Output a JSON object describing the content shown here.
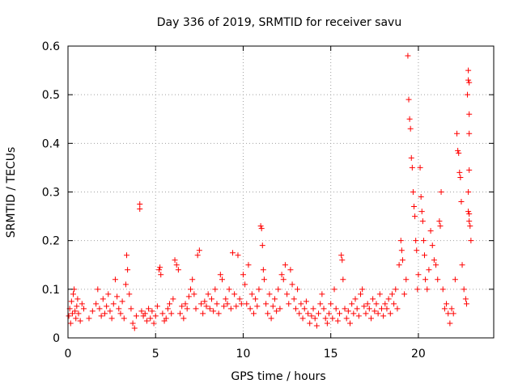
{
  "chart_data": {
    "type": "scatter",
    "title": "Day 336 of 2019, SRMTID for receiver savu",
    "xlabel": "GPS time / hours",
    "ylabel": "SRMTID / TECUs",
    "xlim": [
      0,
      24.3
    ],
    "ylim": [
      0,
      0.6
    ],
    "xticks": [
      0,
      5,
      10,
      15,
      20
    ],
    "yticks": [
      0,
      0.1,
      0.2,
      0.3,
      0.4,
      0.5,
      0.6
    ],
    "xtick_labels": [
      "0",
      "5",
      "10",
      "15",
      "20"
    ],
    "ytick_labels": [
      "0",
      "0.1",
      "0.2",
      "0.3",
      "0.4",
      "0.5",
      "0.6"
    ],
    "grid": true,
    "marker": "+",
    "color": "#ff0000",
    "series": [
      {
        "name": "SRMTID",
        "points": [
          [
            0.05,
            0.045
          ],
          [
            0.1,
            0.06
          ],
          [
            0.15,
            0.03
          ],
          [
            0.2,
            0.075
          ],
          [
            0.25,
            0.05
          ],
          [
            0.3,
            0.09
          ],
          [
            0.35,
            0.1
          ],
          [
            0.4,
            0.055
          ],
          [
            0.45,
            0.04
          ],
          [
            0.5,
            0.065
          ],
          [
            0.55,
            0.08
          ],
          [
            0.6,
            0.05
          ],
          [
            0.7,
            0.035
          ],
          [
            0.8,
            0.07
          ],
          [
            0.9,
            0.06
          ],
          [
            1.2,
            0.04
          ],
          [
            1.4,
            0.055
          ],
          [
            1.6,
            0.07
          ],
          [
            1.7,
            0.1
          ],
          [
            1.8,
            0.06
          ],
          [
            1.9,
            0.045
          ],
          [
            2.0,
            0.08
          ],
          [
            2.1,
            0.05
          ],
          [
            2.2,
            0.065
          ],
          [
            2.3,
            0.09
          ],
          [
            2.4,
            0.055
          ],
          [
            2.5,
            0.04
          ],
          [
            2.6,
            0.07
          ],
          [
            2.7,
            0.12
          ],
          [
            2.8,
            0.085
          ],
          [
            2.9,
            0.06
          ],
          [
            3.0,
            0.05
          ],
          [
            3.1,
            0.075
          ],
          [
            3.2,
            0.04
          ],
          [
            3.3,
            0.11
          ],
          [
            3.35,
            0.17
          ],
          [
            3.4,
            0.14
          ],
          [
            3.5,
            0.09
          ],
          [
            3.6,
            0.06
          ],
          [
            3.7,
            0.03
          ],
          [
            3.8,
            0.02
          ],
          [
            3.9,
            0.045
          ],
          [
            4.1,
            0.275
          ],
          [
            4.1,
            0.265
          ],
          [
            4.2,
            0.055
          ],
          [
            4.3,
            0.045
          ],
          [
            4.4,
            0.05
          ],
          [
            4.5,
            0.035
          ],
          [
            4.6,
            0.06
          ],
          [
            4.7,
            0.04
          ],
          [
            4.8,
            0.055
          ],
          [
            4.9,
            0.03
          ],
          [
            5.0,
            0.045
          ],
          [
            5.1,
            0.065
          ],
          [
            5.2,
            0.14
          ],
          [
            5.25,
            0.145
          ],
          [
            5.3,
            0.13
          ],
          [
            5.4,
            0.05
          ],
          [
            5.5,
            0.035
          ],
          [
            5.6,
            0.04
          ],
          [
            5.7,
            0.06
          ],
          [
            5.8,
            0.07
          ],
          [
            5.9,
            0.05
          ],
          [
            6.0,
            0.08
          ],
          [
            6.1,
            0.16
          ],
          [
            6.2,
            0.15
          ],
          [
            6.3,
            0.14
          ],
          [
            6.4,
            0.05
          ],
          [
            6.5,
            0.065
          ],
          [
            6.6,
            0.04
          ],
          [
            6.7,
            0.07
          ],
          [
            6.8,
            0.06
          ],
          [
            6.9,
            0.085
          ],
          [
            7.0,
            0.1
          ],
          [
            7.1,
            0.12
          ],
          [
            7.2,
            0.09
          ],
          [
            7.3,
            0.06
          ],
          [
            7.4,
            0.17
          ],
          [
            7.5,
            0.18
          ],
          [
            7.6,
            0.07
          ],
          [
            7.7,
            0.05
          ],
          [
            7.8,
            0.075
          ],
          [
            7.9,
            0.065
          ],
          [
            8.0,
            0.09
          ],
          [
            8.1,
            0.06
          ],
          [
            8.2,
            0.08
          ],
          [
            8.3,
            0.055
          ],
          [
            8.4,
            0.1
          ],
          [
            8.5,
            0.07
          ],
          [
            8.6,
            0.05
          ],
          [
            8.7,
            0.13
          ],
          [
            8.8,
            0.12
          ],
          [
            8.9,
            0.065
          ],
          [
            9.0,
            0.08
          ],
          [
            9.1,
            0.07
          ],
          [
            9.2,
            0.1
          ],
          [
            9.3,
            0.06
          ],
          [
            9.4,
            0.175
          ],
          [
            9.5,
            0.09
          ],
          [
            9.6,
            0.065
          ],
          [
            9.7,
            0.17
          ],
          [
            9.8,
            0.08
          ],
          [
            9.9,
            0.07
          ],
          [
            10.0,
            0.13
          ],
          [
            10.1,
            0.11
          ],
          [
            10.2,
            0.07
          ],
          [
            10.3,
            0.15
          ],
          [
            10.4,
            0.06
          ],
          [
            10.5,
            0.09
          ],
          [
            10.6,
            0.05
          ],
          [
            10.7,
            0.08
          ],
          [
            10.8,
            0.065
          ],
          [
            10.9,
            0.1
          ],
          [
            11.0,
            0.23
          ],
          [
            11.05,
            0.225
          ],
          [
            11.1,
            0.19
          ],
          [
            11.15,
            0.14
          ],
          [
            11.2,
            0.12
          ],
          [
            11.3,
            0.07
          ],
          [
            11.4,
            0.05
          ],
          [
            11.5,
            0.09
          ],
          [
            11.6,
            0.04
          ],
          [
            11.7,
            0.065
          ],
          [
            11.8,
            0.08
          ],
          [
            11.9,
            0.055
          ],
          [
            12.0,
            0.1
          ],
          [
            12.1,
            0.06
          ],
          [
            12.2,
            0.13
          ],
          [
            12.3,
            0.12
          ],
          [
            12.4,
            0.15
          ],
          [
            12.5,
            0.09
          ],
          [
            12.6,
            0.07
          ],
          [
            12.7,
            0.14
          ],
          [
            12.8,
            0.11
          ],
          [
            12.9,
            0.08
          ],
          [
            13.0,
            0.06
          ],
          [
            13.1,
            0.1
          ],
          [
            13.2,
            0.05
          ],
          [
            13.3,
            0.07
          ],
          [
            13.4,
            0.04
          ],
          [
            13.5,
            0.06
          ],
          [
            13.6,
            0.075
          ],
          [
            13.7,
            0.05
          ],
          [
            13.8,
            0.03
          ],
          [
            13.9,
            0.045
          ],
          [
            14.0,
            0.06
          ],
          [
            14.1,
            0.04
          ],
          [
            14.2,
            0.025
          ],
          [
            14.3,
            0.05
          ],
          [
            14.4,
            0.07
          ],
          [
            14.5,
            0.09
          ],
          [
            14.6,
            0.06
          ],
          [
            14.7,
            0.04
          ],
          [
            14.8,
            0.03
          ],
          [
            14.9,
            0.05
          ],
          [
            15.0,
            0.07
          ],
          [
            15.1,
            0.04
          ],
          [
            15.2,
            0.1
          ],
          [
            15.3,
            0.06
          ],
          [
            15.4,
            0.035
          ],
          [
            15.5,
            0.05
          ],
          [
            15.6,
            0.17
          ],
          [
            15.65,
            0.16
          ],
          [
            15.7,
            0.12
          ],
          [
            15.8,
            0.06
          ],
          [
            15.9,
            0.04
          ],
          [
            16.0,
            0.055
          ],
          [
            16.1,
            0.03
          ],
          [
            16.2,
            0.07
          ],
          [
            16.3,
            0.05
          ],
          [
            16.4,
            0.08
          ],
          [
            16.5,
            0.06
          ],
          [
            16.6,
            0.045
          ],
          [
            16.7,
            0.09
          ],
          [
            16.8,
            0.1
          ],
          [
            16.9,
            0.065
          ],
          [
            17.0,
            0.05
          ],
          [
            17.1,
            0.07
          ],
          [
            17.2,
            0.06
          ],
          [
            17.3,
            0.04
          ],
          [
            17.4,
            0.08
          ],
          [
            17.5,
            0.055
          ],
          [
            17.6,
            0.07
          ],
          [
            17.7,
            0.05
          ],
          [
            17.8,
            0.09
          ],
          [
            17.9,
            0.06
          ],
          [
            18.0,
            0.045
          ],
          [
            18.1,
            0.07
          ],
          [
            18.2,
            0.06
          ],
          [
            18.3,
            0.08
          ],
          [
            18.4,
            0.05
          ],
          [
            18.5,
            0.09
          ],
          [
            18.6,
            0.07
          ],
          [
            18.7,
            0.1
          ],
          [
            18.8,
            0.06
          ],
          [
            18.9,
            0.15
          ],
          [
            19.0,
            0.2
          ],
          [
            19.05,
            0.18
          ],
          [
            19.1,
            0.16
          ],
          [
            19.2,
            0.09
          ],
          [
            19.3,
            0.12
          ],
          [
            19.4,
            0.58
          ],
          [
            19.45,
            0.49
          ],
          [
            19.5,
            0.45
          ],
          [
            19.55,
            0.43
          ],
          [
            19.6,
            0.37
          ],
          [
            19.65,
            0.35
          ],
          [
            19.7,
            0.3
          ],
          [
            19.75,
            0.27
          ],
          [
            19.8,
            0.25
          ],
          [
            19.85,
            0.2
          ],
          [
            19.9,
            0.18
          ],
          [
            19.95,
            0.1
          ],
          [
            20.0,
            0.13
          ],
          [
            20.1,
            0.35
          ],
          [
            20.15,
            0.29
          ],
          [
            20.2,
            0.26
          ],
          [
            20.25,
            0.24
          ],
          [
            20.3,
            0.2
          ],
          [
            20.35,
            0.17
          ],
          [
            20.4,
            0.12
          ],
          [
            20.5,
            0.1
          ],
          [
            20.6,
            0.14
          ],
          [
            20.7,
            0.22
          ],
          [
            20.8,
            0.19
          ],
          [
            20.9,
            0.16
          ],
          [
            21.0,
            0.15
          ],
          [
            21.1,
            0.12
          ],
          [
            21.2,
            0.24
          ],
          [
            21.25,
            0.23
          ],
          [
            21.3,
            0.3
          ],
          [
            21.4,
            0.1
          ],
          [
            21.5,
            0.06
          ],
          [
            21.6,
            0.07
          ],
          [
            21.7,
            0.05
          ],
          [
            21.8,
            0.03
          ],
          [
            21.9,
            0.06
          ],
          [
            22.0,
            0.05
          ],
          [
            22.1,
            0.12
          ],
          [
            22.2,
            0.42
          ],
          [
            22.25,
            0.385
          ],
          [
            22.3,
            0.38
          ],
          [
            22.35,
            0.34
          ],
          [
            22.4,
            0.33
          ],
          [
            22.45,
            0.28
          ],
          [
            22.5,
            0.15
          ],
          [
            22.6,
            0.1
          ],
          [
            22.7,
            0.08
          ],
          [
            22.75,
            0.07
          ],
          [
            22.8,
            0.5
          ],
          [
            22.85,
            0.26
          ],
          [
            22.9,
            0.24
          ],
          [
            22.95,
            0.23
          ],
          [
            23.0,
            0.2
          ],
          [
            22.85,
            0.55
          ],
          [
            22.85,
            0.53
          ],
          [
            22.9,
            0.525
          ],
          [
            22.9,
            0.46
          ],
          [
            22.9,
            0.42
          ],
          [
            22.9,
            0.345
          ],
          [
            22.85,
            0.3
          ],
          [
            22.9,
            0.255
          ]
        ]
      }
    ]
  }
}
